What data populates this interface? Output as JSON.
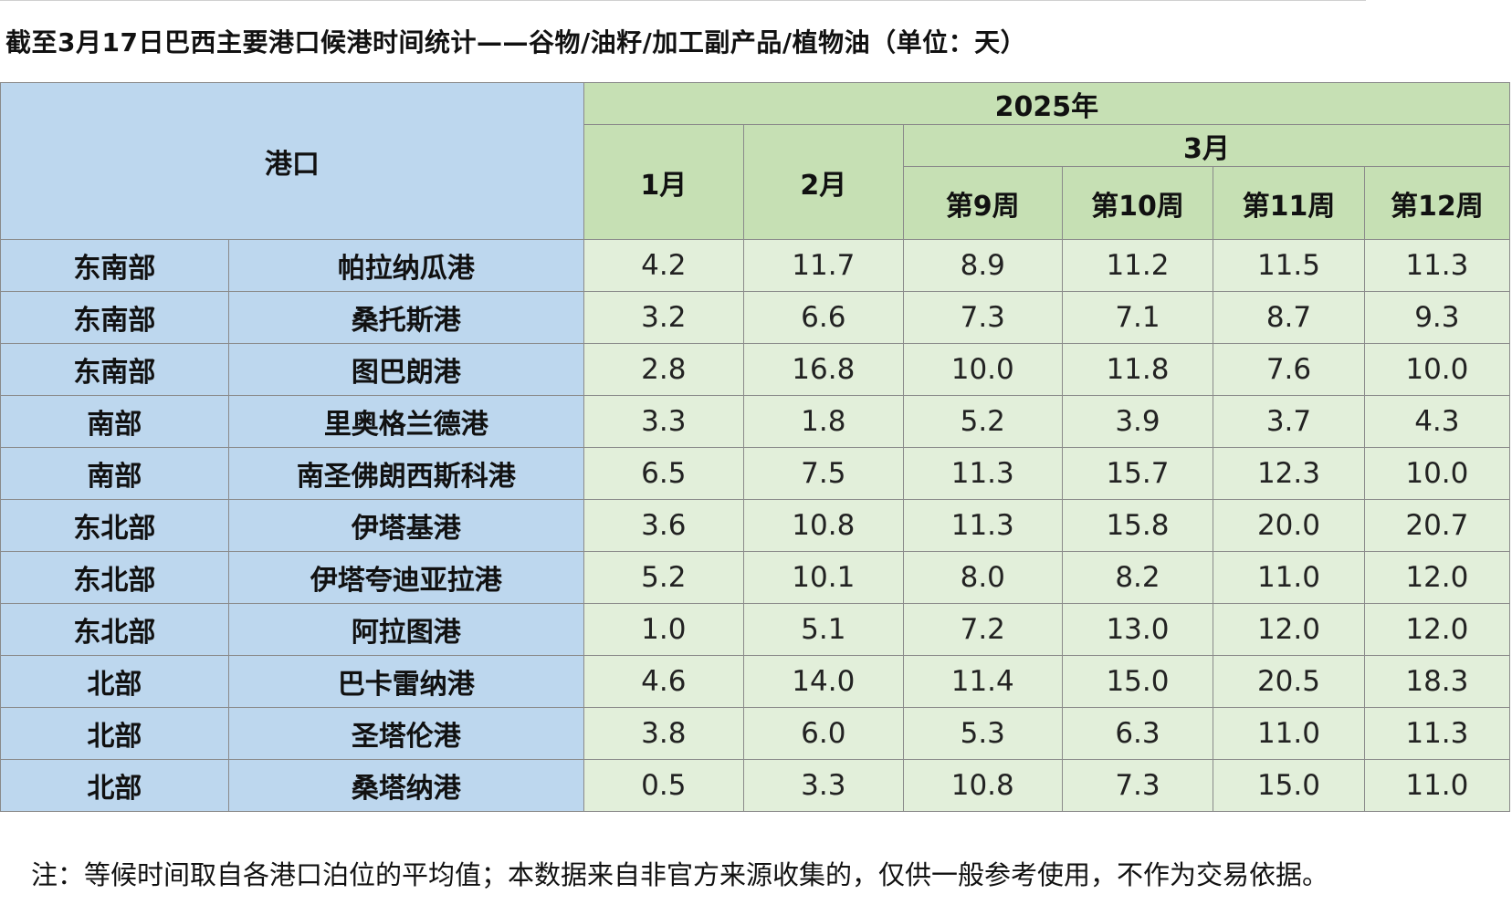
{
  "title": "截至3月17日巴西主要港口候港时间统计——谷物/油籽/加工副产品/植物油（单位：天）",
  "header": {
    "port_label": "港口",
    "year": "2025年",
    "months": [
      "1月",
      "2月"
    ],
    "march": "3月",
    "weeks": [
      "第9周",
      "第10周",
      "第11周",
      "第12周"
    ]
  },
  "rows": [
    {
      "region": "东南部",
      "port": "帕拉纳瓜港",
      "values": [
        "4.2",
        "11.7",
        "8.9",
        "11.2",
        "11.5",
        "11.3"
      ]
    },
    {
      "region": "东南部",
      "port": "桑托斯港",
      "values": [
        "3.2",
        "6.6",
        "7.3",
        "7.1",
        "8.7",
        "9.3"
      ]
    },
    {
      "region": "东南部",
      "port": "图巴朗港",
      "values": [
        "2.8",
        "16.8",
        "10.0",
        "11.8",
        "7.6",
        "10.0"
      ]
    },
    {
      "region": "南部",
      "port": "里奥格兰德港",
      "values": [
        "3.3",
        "1.8",
        "5.2",
        "3.9",
        "3.7",
        "4.3"
      ]
    },
    {
      "region": "南部",
      "port": "南圣佛朗西斯科港",
      "values": [
        "6.5",
        "7.5",
        "11.3",
        "15.7",
        "12.3",
        "10.0"
      ]
    },
    {
      "region": "东北部",
      "port": "伊塔基港",
      "values": [
        "3.6",
        "10.8",
        "11.3",
        "15.8",
        "20.0",
        "20.7"
      ]
    },
    {
      "region": "东北部",
      "port": "伊塔夸迪亚拉港",
      "values": [
        "5.2",
        "10.1",
        "8.0",
        "8.2",
        "11.0",
        "12.0"
      ]
    },
    {
      "region": "东北部",
      "port": "阿拉图港",
      "values": [
        "1.0",
        "5.1",
        "7.2",
        "13.0",
        "12.0",
        "12.0"
      ]
    },
    {
      "region": "北部",
      "port": "巴卡雷纳港",
      "values": [
        "4.6",
        "14.0",
        "11.4",
        "15.0",
        "20.5",
        "18.3"
      ]
    },
    {
      "region": "北部",
      "port": "圣塔伦港",
      "values": [
        "3.8",
        "6.0",
        "5.3",
        "6.3",
        "11.0",
        "11.3"
      ]
    },
    {
      "region": "北部",
      "port": "桑塔纳港",
      "values": [
        "0.5",
        "3.3",
        "10.8",
        "7.3",
        "15.0",
        "11.0"
      ]
    }
  ],
  "note": "注：等候时间取自各港口泊位的平均值；本数据来自非官方来源收集的，仅供一般参考使用，不作为交易依据。",
  "colors": {
    "port_header_bg": "#bdd7ee",
    "time_header_bg": "#c6e0b4",
    "value_cell_bg": "#e2efda"
  }
}
